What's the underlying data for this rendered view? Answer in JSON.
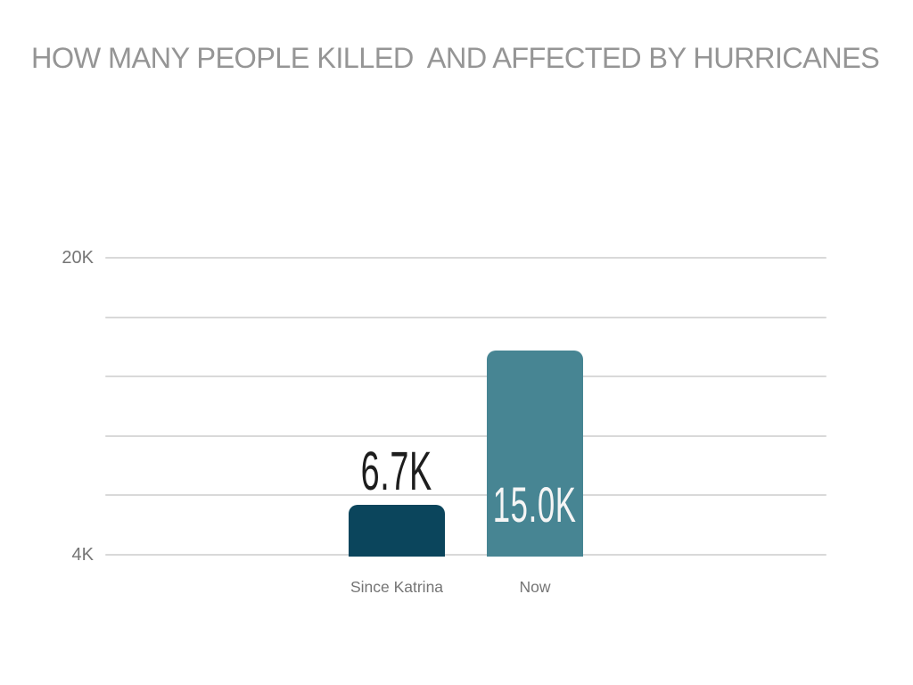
{
  "title": "HOW MANY PEOPLE KILLED  AND AFFECTED BY HURRICANES",
  "chart_data": {
    "type": "bar",
    "title": "HOW MANY PEOPLE KILLED  AND AFFECTED BY HURRICANES",
    "categories": [
      "Since Katrina",
      "Now"
    ],
    "values": [
      6.7,
      15.0
    ],
    "value_labels": [
      "6.7K",
      "15.0K"
    ],
    "value_label_placement": [
      "above",
      "inside"
    ],
    "value_label_colors": [
      "#1d1d1d",
      "#f5f5f5"
    ],
    "bar_colors": [
      "#0b455c",
      "#478593"
    ],
    "xlabel": "",
    "ylabel": "",
    "ylim": [
      4,
      20
    ],
    "yticks": [
      {
        "value": 20,
        "label": "20K"
      },
      {
        "value": 4,
        "label": "4K"
      }
    ],
    "gridline_values": [
      20,
      16.8,
      13.6,
      10.4,
      7.2,
      4
    ],
    "grid": "horizontal",
    "legend_position": "none"
  },
  "colors": {
    "background": "#ffffff",
    "title_text": "#959595",
    "axis_text": "#757575",
    "category_text": "#757575",
    "gridline": "#d9d9d9"
  }
}
